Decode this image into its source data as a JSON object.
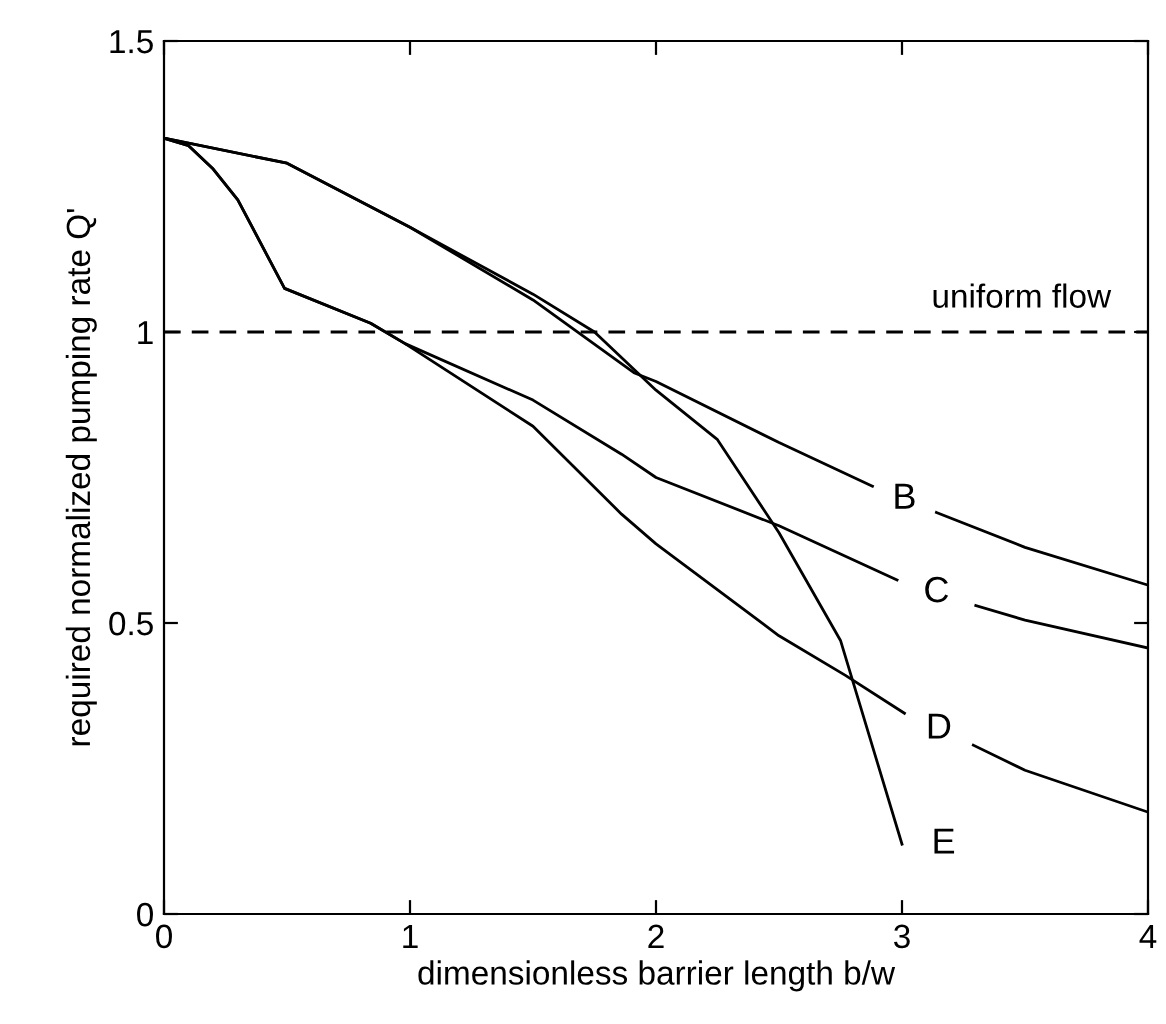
{
  "chart_data": {
    "type": "line",
    "xlabel": "dimensionless barrier length b/w",
    "ylabel": "required normalized pumping rate Q'",
    "xlim": [
      0,
      4
    ],
    "ylim": [
      0,
      1.5
    ],
    "xticks": [
      0,
      1,
      2,
      3,
      4
    ],
    "yticks": [
      0,
      0.5,
      1,
      1.5
    ],
    "grid": false,
    "legend": false,
    "marker": "none",
    "line_style": "solid",
    "series": [
      {
        "name": "B",
        "color": "#000000",
        "x": [
          0,
          0.5,
          1.0,
          1.5,
          1.91,
          2.0,
          2.5,
          2.88,
          2.98,
          3.14,
          3.5,
          4.0
        ],
        "values": [
          1.333,
          1.29,
          1.18,
          1.055,
          0.93,
          0.915,
          0.81,
          0.735,
          null,
          0.69,
          0.63,
          0.565
        ]
      },
      {
        "name": "C",
        "color": "#000000",
        "x": [
          0,
          0.1,
          0.2,
          0.3,
          0.49,
          0.84,
          0.98,
          1.5,
          1.86,
          2.0,
          2.5,
          2.98,
          3.14,
          3.3,
          3.5,
          4.0
        ],
        "values": [
          1.333,
          1.32,
          1.28,
          1.227,
          1.075,
          1.015,
          0.98,
          0.883,
          0.79,
          0.75,
          0.667,
          0.574,
          null,
          0.53,
          0.505,
          0.457
        ]
      },
      {
        "name": "D",
        "color": "#000000",
        "x": [
          0,
          0.1,
          0.2,
          0.3,
          0.49,
          0.84,
          0.98,
          1.5,
          1.86,
          2.0,
          2.5,
          2.77,
          3.01,
          3.12,
          3.29,
          3.5,
          4.0
        ],
        "values": [
          1.333,
          1.32,
          1.28,
          1.227,
          1.075,
          1.015,
          0.98,
          0.838,
          0.687,
          0.636,
          0.478,
          0.41,
          0.345,
          null,
          0.29,
          0.247,
          0.175
        ]
      },
      {
        "name": "E",
        "color": "#000000",
        "x": [
          0,
          0.5,
          1.0,
          1.5,
          1.75,
          2.0,
          2.25,
          2.5,
          2.75,
          3.0
        ],
        "values": [
          1.333,
          1.29,
          1.18,
          1.065,
          1.0,
          0.9,
          0.815,
          0.655,
          0.47,
          0.12
        ]
      }
    ],
    "ref_lines": [
      {
        "axis": "y",
        "value": 1,
        "label": "uniform flow",
        "color": "#000000",
        "line_style": "dashed"
      }
    ]
  }
}
